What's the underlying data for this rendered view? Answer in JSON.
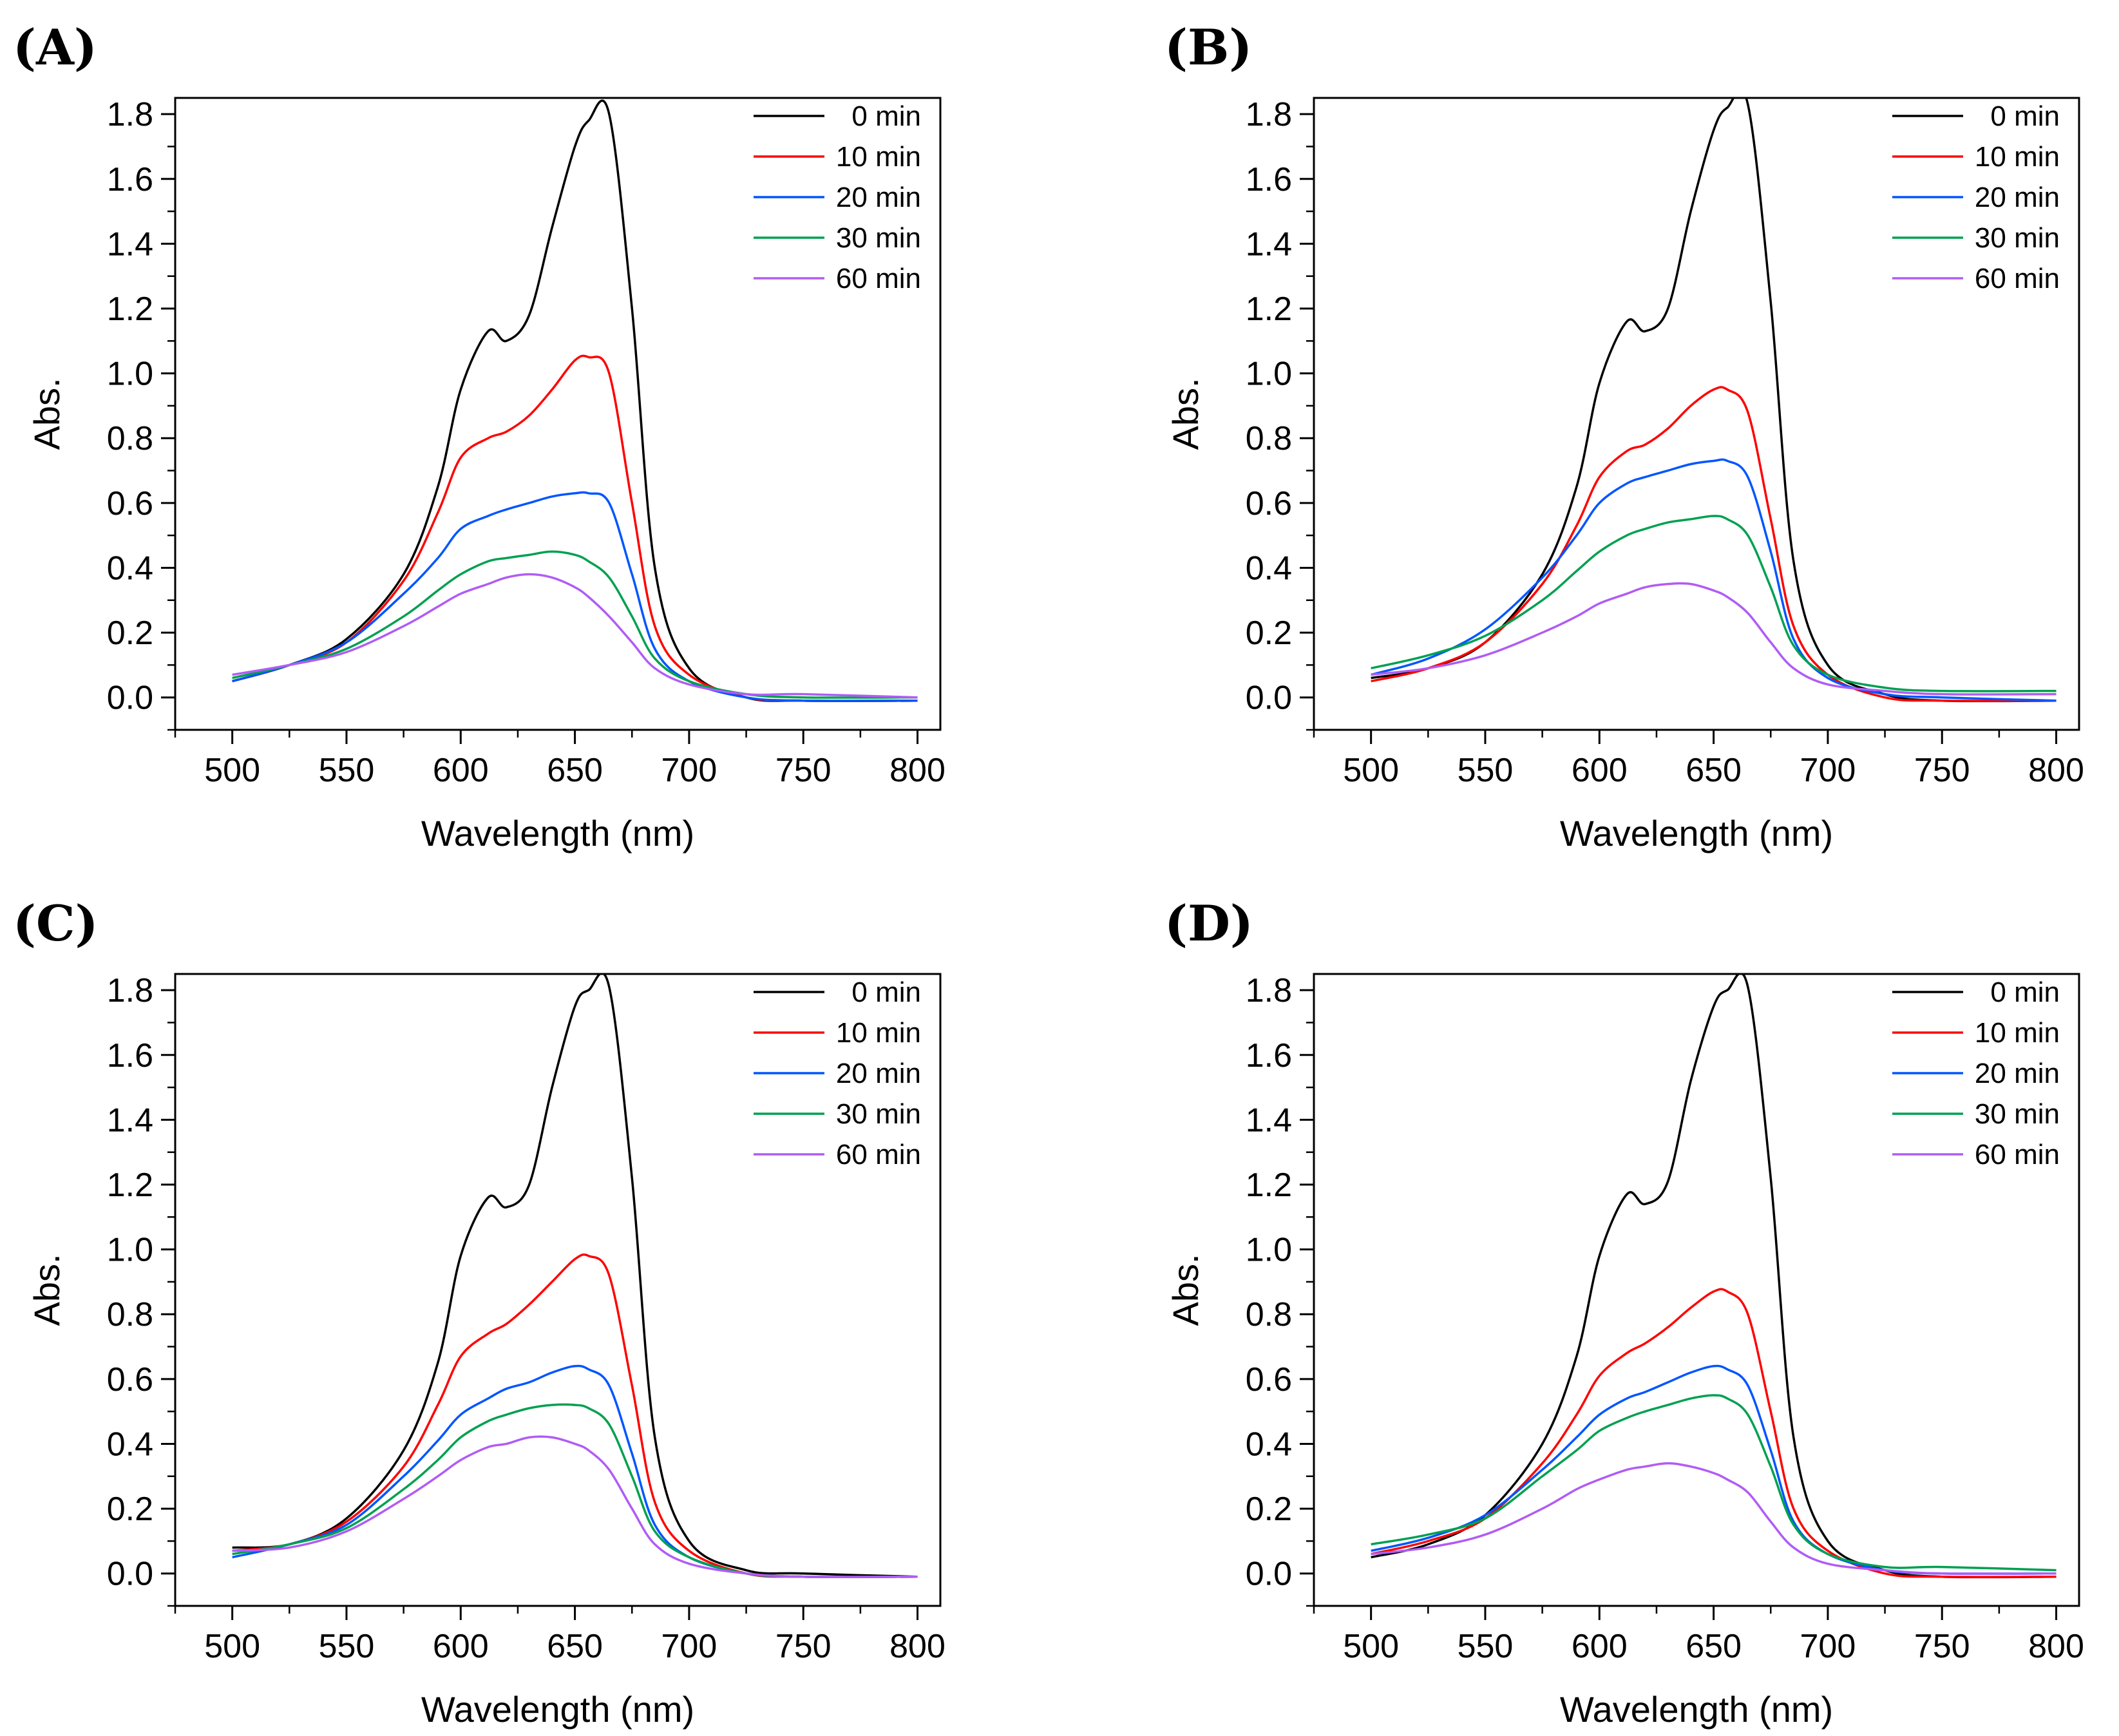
{
  "figure": {
    "panel_count": 4
  },
  "chart_data": [
    {
      "panel": "(A)",
      "type": "line",
      "xlabel": "Wavelength (nm)",
      "ylabel": "Abs.",
      "xlim": [
        475,
        810
      ],
      "ylim": [
        -0.1,
        1.85
      ],
      "xticks": [
        500,
        550,
        600,
        650,
        700,
        750,
        800
      ],
      "yticks": [
        0.0,
        0.2,
        0.4,
        0.6,
        0.8,
        1.0,
        1.2,
        1.4,
        1.6,
        1.8
      ],
      "x": [
        500,
        525,
        550,
        575,
        590,
        600,
        612,
        620,
        630,
        640,
        650,
        656,
        665,
        675,
        685,
        700,
        725,
        750,
        800
      ],
      "legend": "top-right",
      "series": [
        {
          "name": "0 min",
          "color": "#000000",
          "values": [
            0.05,
            0.1,
            0.18,
            0.38,
            0.65,
            0.95,
            1.13,
            1.1,
            1.18,
            1.45,
            1.7,
            1.78,
            1.8,
            1.2,
            0.4,
            0.09,
            0.0,
            -0.01,
            -0.01
          ]
        },
        {
          "name": "10 min",
          "color": "#ff0000",
          "values": [
            0.05,
            0.1,
            0.17,
            0.36,
            0.57,
            0.74,
            0.8,
            0.82,
            0.87,
            0.95,
            1.04,
            1.05,
            1.0,
            0.6,
            0.22,
            0.07,
            0.0,
            -0.01,
            -0.01
          ]
        },
        {
          "name": "20 min",
          "color": "#0055ff",
          "values": [
            0.05,
            0.1,
            0.17,
            0.32,
            0.43,
            0.52,
            0.56,
            0.58,
            0.6,
            0.62,
            0.63,
            0.63,
            0.6,
            0.38,
            0.15,
            0.05,
            0.0,
            -0.01,
            -0.01
          ]
        },
        {
          "name": "30 min",
          "color": "#00a050",
          "values": [
            0.06,
            0.1,
            0.15,
            0.25,
            0.33,
            0.38,
            0.42,
            0.43,
            0.44,
            0.45,
            0.44,
            0.42,
            0.37,
            0.25,
            0.12,
            0.05,
            0.01,
            0.0,
            0.0
          ]
        },
        {
          "name": "60 min",
          "color": "#b05cf5",
          "values": [
            0.07,
            0.1,
            0.14,
            0.22,
            0.28,
            0.32,
            0.35,
            0.37,
            0.38,
            0.37,
            0.34,
            0.31,
            0.25,
            0.17,
            0.09,
            0.04,
            0.01,
            0.01,
            0.0
          ]
        }
      ]
    },
    {
      "panel": "(B)",
      "type": "line",
      "xlabel": "Wavelength (nm)",
      "ylabel": "Abs.",
      "xlim": [
        475,
        810
      ],
      "ylim": [
        -0.1,
        1.85
      ],
      "xticks": [
        500,
        550,
        600,
        650,
        700,
        750,
        800
      ],
      "yticks": [
        0.0,
        0.2,
        0.4,
        0.6,
        0.8,
        1.0,
        1.2,
        1.4,
        1.6,
        1.8
      ],
      "x": [
        500,
        525,
        550,
        575,
        590,
        600,
        612,
        620,
        630,
        640,
        650,
        656,
        665,
        675,
        685,
        700,
        725,
        750,
        800
      ],
      "legend": "top-right",
      "series": [
        {
          "name": "0 min",
          "color": "#000000",
          "values": [
            0.06,
            0.09,
            0.17,
            0.38,
            0.65,
            0.97,
            1.16,
            1.13,
            1.2,
            1.5,
            1.75,
            1.82,
            1.83,
            1.22,
            0.42,
            0.1,
            0.01,
            -0.01,
            -0.01
          ]
        },
        {
          "name": "10 min",
          "color": "#ff0000",
          "values": [
            0.05,
            0.09,
            0.17,
            0.35,
            0.53,
            0.68,
            0.76,
            0.78,
            0.83,
            0.9,
            0.95,
            0.95,
            0.88,
            0.55,
            0.22,
            0.07,
            0.0,
            -0.01,
            -0.01
          ]
        },
        {
          "name": "20 min",
          "color": "#0055ff",
          "values": [
            0.07,
            0.12,
            0.21,
            0.37,
            0.5,
            0.6,
            0.66,
            0.68,
            0.7,
            0.72,
            0.73,
            0.73,
            0.68,
            0.45,
            0.18,
            0.06,
            0.01,
            0.0,
            -0.01
          ]
        },
        {
          "name": "30 min",
          "color": "#00a050",
          "values": [
            0.09,
            0.13,
            0.19,
            0.3,
            0.39,
            0.45,
            0.5,
            0.52,
            0.54,
            0.55,
            0.56,
            0.55,
            0.5,
            0.34,
            0.16,
            0.07,
            0.03,
            0.02,
            0.02
          ]
        },
        {
          "name": "60 min",
          "color": "#b05cf5",
          "values": [
            0.07,
            0.09,
            0.13,
            0.2,
            0.25,
            0.29,
            0.32,
            0.34,
            0.35,
            0.35,
            0.33,
            0.31,
            0.26,
            0.17,
            0.09,
            0.04,
            0.02,
            0.01,
            0.01
          ]
        }
      ]
    },
    {
      "panel": "(C)",
      "type": "line",
      "xlabel": "Wavelength (nm)",
      "ylabel": "Abs.",
      "xlim": [
        475,
        810
      ],
      "ylim": [
        -0.1,
        1.85
      ],
      "xticks": [
        500,
        550,
        600,
        650,
        700,
        750,
        800
      ],
      "yticks": [
        0.0,
        0.2,
        0.4,
        0.6,
        0.8,
        1.0,
        1.2,
        1.4,
        1.6,
        1.8
      ],
      "x": [
        500,
        525,
        550,
        575,
        590,
        600,
        612,
        620,
        630,
        640,
        650,
        656,
        665,
        675,
        685,
        700,
        725,
        750,
        800
      ],
      "legend": "top-right",
      "series": [
        {
          "name": "0 min",
          "color": "#000000",
          "values": [
            0.08,
            0.09,
            0.17,
            0.38,
            0.65,
            0.98,
            1.16,
            1.13,
            1.2,
            1.5,
            1.75,
            1.8,
            1.81,
            1.22,
            0.42,
            0.1,
            0.01,
            0.0,
            -0.01
          ]
        },
        {
          "name": "10 min",
          "color": "#ff0000",
          "values": [
            0.07,
            0.09,
            0.16,
            0.33,
            0.52,
            0.67,
            0.74,
            0.77,
            0.83,
            0.9,
            0.97,
            0.98,
            0.92,
            0.58,
            0.22,
            0.07,
            0.0,
            -0.01,
            -0.01
          ]
        },
        {
          "name": "20 min",
          "color": "#0055ff",
          "values": [
            0.05,
            0.09,
            0.15,
            0.3,
            0.41,
            0.49,
            0.54,
            0.57,
            0.59,
            0.62,
            0.64,
            0.63,
            0.58,
            0.37,
            0.15,
            0.05,
            0.0,
            -0.01,
            -0.01
          ]
        },
        {
          "name": "30 min",
          "color": "#00a050",
          "values": [
            0.06,
            0.09,
            0.14,
            0.26,
            0.35,
            0.42,
            0.47,
            0.49,
            0.51,
            0.52,
            0.52,
            0.51,
            0.46,
            0.3,
            0.13,
            0.05,
            0.0,
            -0.01,
            -0.01
          ]
        },
        {
          "name": "60 min",
          "color": "#b05cf5",
          "values": [
            0.07,
            0.08,
            0.13,
            0.23,
            0.3,
            0.35,
            0.39,
            0.4,
            0.42,
            0.42,
            0.4,
            0.38,
            0.32,
            0.2,
            0.09,
            0.03,
            0.0,
            -0.01,
            -0.01
          ]
        }
      ]
    },
    {
      "panel": "(D)",
      "type": "line",
      "xlabel": "Wavelength (nm)",
      "ylabel": "Abs.",
      "xlim": [
        475,
        810
      ],
      "ylim": [
        -0.1,
        1.85
      ],
      "xticks": [
        500,
        550,
        600,
        650,
        700,
        750,
        800
      ],
      "yticks": [
        0.0,
        0.2,
        0.4,
        0.6,
        0.8,
        1.0,
        1.2,
        1.4,
        1.6,
        1.8
      ],
      "x": [
        500,
        525,
        550,
        575,
        590,
        600,
        612,
        620,
        630,
        640,
        650,
        656,
        665,
        675,
        685,
        700,
        725,
        750,
        800
      ],
      "legend": "top-right",
      "series": [
        {
          "name": "0 min",
          "color": "#000000",
          "values": [
            0.05,
            0.09,
            0.18,
            0.4,
            0.67,
            0.98,
            1.17,
            1.14,
            1.21,
            1.52,
            1.75,
            1.8,
            1.81,
            1.22,
            0.42,
            0.1,
            0.01,
            -0.01,
            -0.01
          ]
        },
        {
          "name": "10 min",
          "color": "#ff0000",
          "values": [
            0.06,
            0.1,
            0.17,
            0.34,
            0.49,
            0.61,
            0.68,
            0.71,
            0.76,
            0.82,
            0.87,
            0.87,
            0.8,
            0.5,
            0.2,
            0.07,
            0.0,
            -0.01,
            -0.01
          ]
        },
        {
          "name": "20 min",
          "color": "#0055ff",
          "values": [
            0.07,
            0.11,
            0.18,
            0.32,
            0.42,
            0.49,
            0.54,
            0.56,
            0.59,
            0.62,
            0.64,
            0.63,
            0.58,
            0.38,
            0.16,
            0.06,
            0.01,
            0.0,
            0.0
          ]
        },
        {
          "name": "30 min",
          "color": "#00a050",
          "values": [
            0.09,
            0.12,
            0.17,
            0.3,
            0.38,
            0.44,
            0.48,
            0.5,
            0.52,
            0.54,
            0.55,
            0.54,
            0.49,
            0.33,
            0.15,
            0.06,
            0.02,
            0.02,
            0.01
          ]
        },
        {
          "name": "60 min",
          "color": "#b05cf5",
          "values": [
            0.06,
            0.08,
            0.12,
            0.2,
            0.26,
            0.29,
            0.32,
            0.33,
            0.34,
            0.33,
            0.31,
            0.29,
            0.25,
            0.16,
            0.08,
            0.03,
            0.01,
            0.0,
            0.0
          ]
        }
      ]
    }
  ]
}
